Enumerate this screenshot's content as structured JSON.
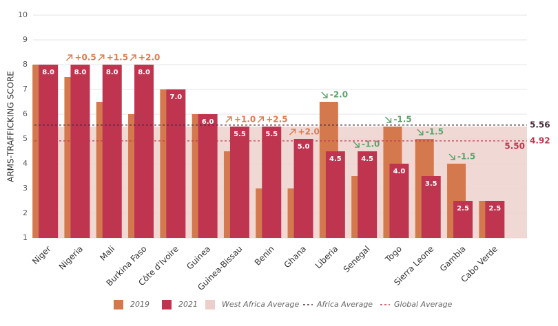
{
  "chart_data": {
    "type": "bar",
    "y_label": "ARMS-TRAFFICKING SCORE",
    "categories": [
      "Niger",
      "Nigeria",
      "Mali",
      "Burkina Faso",
      "Côte d'Ivoire",
      "Guinea",
      "Guinea-Bissau",
      "Benin",
      "Ghana",
      "Liberia",
      "Senegal",
      "Togo",
      "Sierra Leone",
      "Gambia",
      "Cabo Verde"
    ],
    "series": [
      {
        "name": "2019",
        "color": "#d4784e",
        "values": [
          8.0,
          7.5,
          6.5,
          6.0,
          7.0,
          6.0,
          4.5,
          3.0,
          3.0,
          6.5,
          3.5,
          5.5,
          5.0,
          4.0,
          2.5
        ]
      },
      {
        "name": "2021",
        "color": "#bf3550",
        "values": [
          8.0,
          8.0,
          8.0,
          8.0,
          7.0,
          6.0,
          5.5,
          5.5,
          5.0,
          4.5,
          4.5,
          4.0,
          3.5,
          2.5,
          2.5
        ],
        "value_labels": [
          "8.0",
          "8.0",
          "8.0",
          "8.0",
          "7.0",
          "6.0",
          "5.5",
          "5.5",
          "5.0",
          "4.5",
          "4.5",
          "4.0",
          "3.5",
          "2.5",
          "2.5"
        ]
      }
    ],
    "change_labels": [
      null,
      "+0.5",
      "+1.5",
      "+2.0",
      null,
      null,
      "+1.0",
      "+2.5",
      "+2.0",
      "-2.0",
      "-1.0",
      "-1.5",
      "-1.5",
      "-1.5",
      null
    ],
    "reference": [
      {
        "name": "West Africa Average",
        "value": 5.5,
        "value_label": "5.50",
        "color": "#eccfca",
        "style": "area"
      },
      {
        "name": "Africa Average",
        "value": 5.56,
        "color": "#4a2a3a",
        "style": "dashed"
      },
      {
        "name": "Global Average",
        "value": 4.92,
        "color": "#c0374f",
        "style": "dashed"
      }
    ],
    "ylim": [
      1,
      10
    ],
    "yticks": [
      1,
      2,
      3,
      4,
      5,
      6,
      7,
      8,
      9,
      10
    ],
    "grid": true
  }
}
